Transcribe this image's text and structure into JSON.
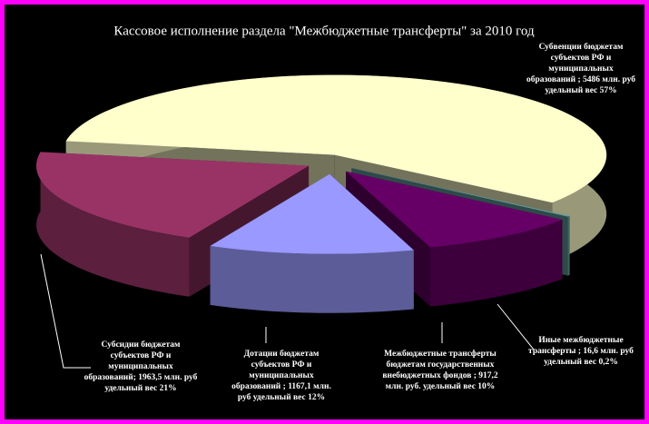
{
  "chart_data": {
    "type": "pie",
    "title": "Кассовое исполнение раздела \"Межбюджетные трансферты\" за 2010 год",
    "labels": [
      [
        "Субвенции бюджетам",
        "субъектов РФ и",
        "муниципальных",
        "образований ; 5486 млн. руб",
        "удельный вес 57%"
      ],
      [
        "Иные межбюджетные",
        "трансферты ; 16,6 млн. руб",
        "удельный вес 0,2%"
      ],
      [
        "Межбюджетные трансферты",
        "бюджетам государственных",
        "внебюджетных фондов ; 917,2",
        "млн. руб. удельный вес 10%"
      ],
      [
        "Дотации бюджетам",
        "субъектов РФ и",
        "муниципальных",
        "образований ; 1167,1 млн.",
        "руб удельный вес 12%"
      ],
      [
        "Субсидии бюджетам",
        "субъектов РФ и",
        "муниципальных",
        "образований; 1963,5 млн. руб",
        "удельный вес 21%"
      ]
    ],
    "values": [
      5486,
      16.6,
      917.2,
      1167.1,
      1963.5
    ],
    "colors": [
      "#ffffcc",
      "#66a3a3",
      "#660066",
      "#9999ff",
      "#993366"
    ]
  }
}
